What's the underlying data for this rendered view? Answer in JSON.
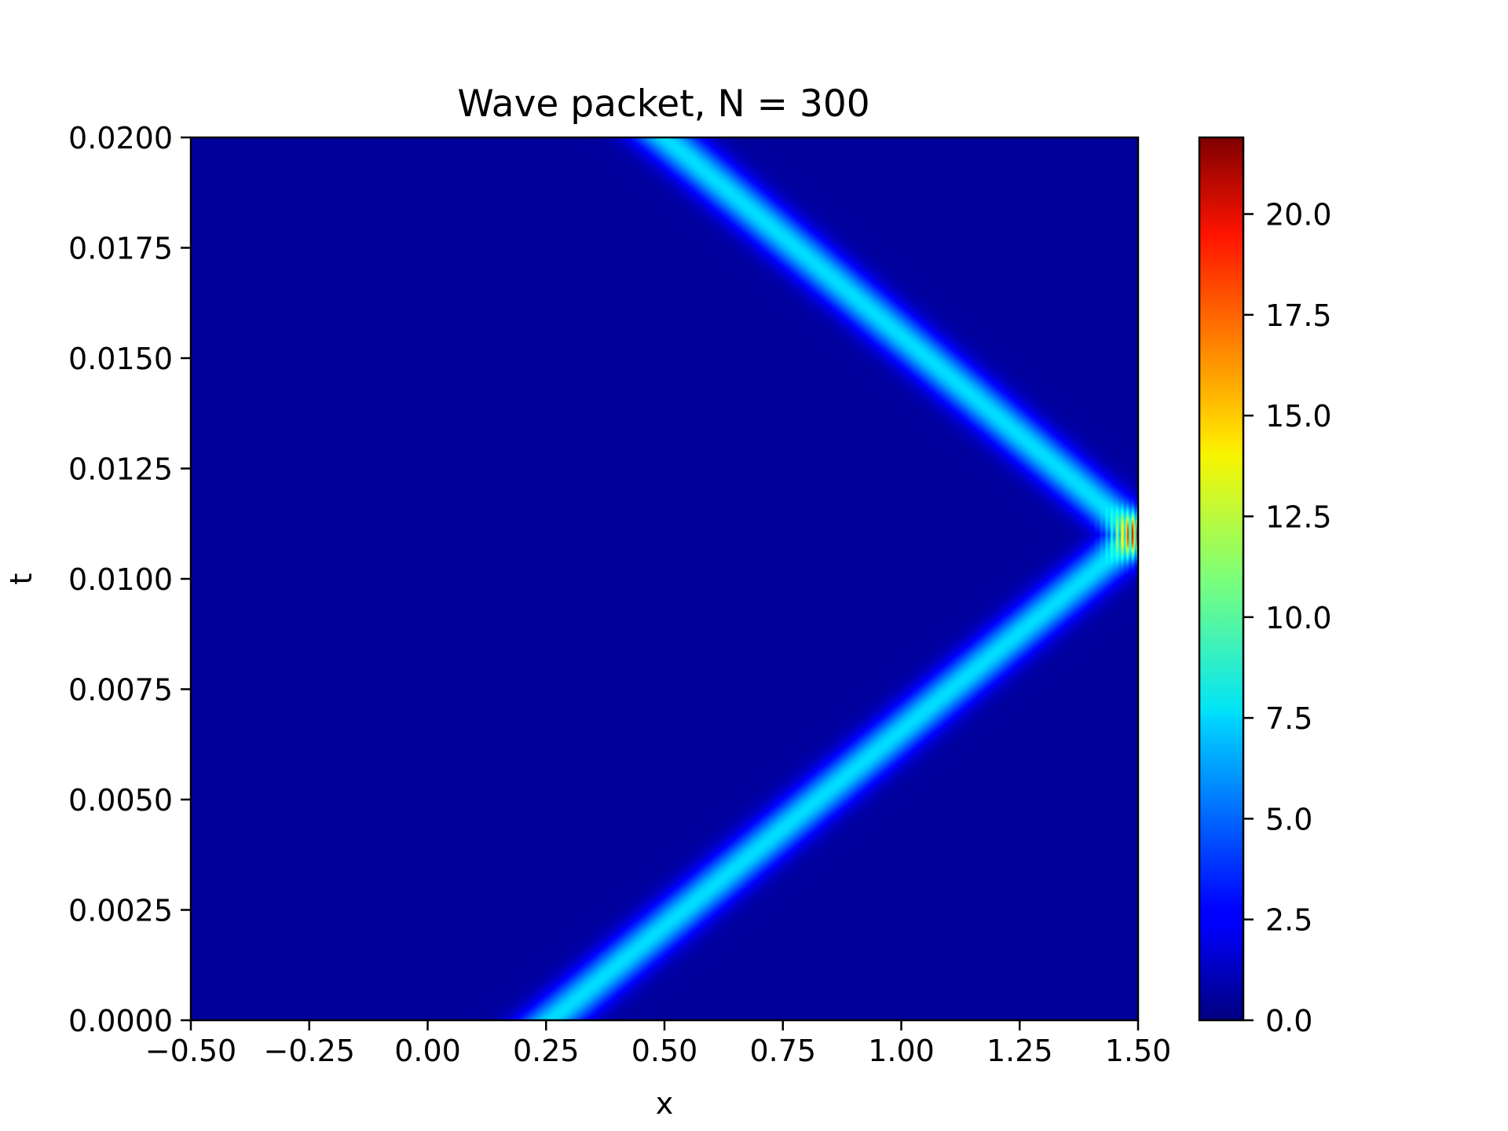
{
  "chart_data": {
    "type": "heatmap",
    "title": "Wave packet, N = 300",
    "xlabel": "x",
    "ylabel": "t",
    "xlim": [
      -0.5,
      1.5
    ],
    "ylim": [
      0.0,
      0.02
    ],
    "x_ticks": [
      -0.5,
      -0.25,
      0.0,
      0.25,
      0.5,
      0.75,
      1.0,
      1.25,
      1.5
    ],
    "x_tick_labels": [
      "−0.50",
      "−0.25",
      "0.00",
      "0.25",
      "0.50",
      "0.75",
      "1.00",
      "1.25",
      "1.50"
    ],
    "y_ticks": [
      0.0,
      0.0025,
      0.005,
      0.0075,
      0.01,
      0.0125,
      0.015,
      0.0175,
      0.02
    ],
    "y_tick_labels": [
      "0.0000",
      "0.0025",
      "0.0050",
      "0.0075",
      "0.0100",
      "0.0125",
      "0.0150",
      "0.0175",
      "0.0200"
    ],
    "colormap": "jet",
    "colorbar": {
      "vmin": 0.0,
      "vmax": 21.9,
      "ticks": [
        0.0,
        2.5,
        5.0,
        7.5,
        10.0,
        12.5,
        15.0,
        17.5,
        20.0
      ],
      "tick_labels": [
        "0.0",
        "2.5",
        "5.0",
        "7.5",
        "10.0",
        "12.5",
        "15.0",
        "17.5",
        "20.0"
      ]
    },
    "packet": {
      "background_level": 0.6,
      "peak_level": 7.5,
      "x_start": 0.26,
      "t_reflect": 0.011,
      "x_wall": 1.5,
      "x_end": 0.5,
      "width_x": 0.05,
      "interference_peak": 21.5,
      "interference_fringes": 9
    },
    "grid": false
  }
}
